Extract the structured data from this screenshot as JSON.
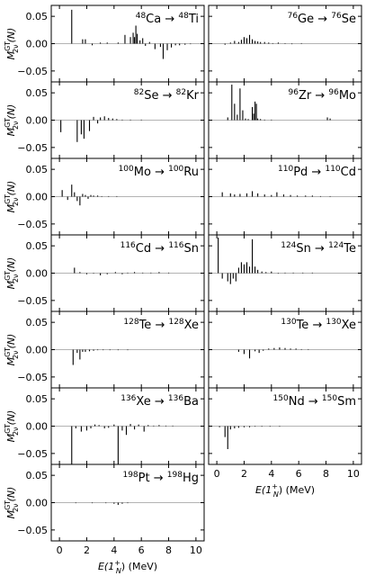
{
  "chart_data": {
    "type": "bar",
    "layout": "small-multiples",
    "xlabel_main": "E(1",
    "xlabel_sup": "+",
    "xlabel_sub": "N",
    "xlabel_unit": ") (MeV)",
    "ylabel_main": "M",
    "ylabel_sup": "GT",
    "ylabel_sub": "2ν",
    "ylabel_suffix": "(N)",
    "xlim": [
      -0.6,
      10.6
    ],
    "ylim": [
      -0.07,
      0.07
    ],
    "xticks": [
      0,
      2,
      4,
      6,
      8,
      10
    ],
    "xtick_labels": [
      "0",
      "2",
      "4",
      "6",
      "8",
      "10"
    ],
    "yticks": [
      -0.05,
      0.0,
      0.05
    ],
    "ytick_labels": [
      "−0.05",
      "0.00",
      "0.05"
    ],
    "arrow": "→",
    "panels": [
      {
        "id": "ca48",
        "from_mass": "48",
        "from_el": "Ca",
        "to_mass": "48",
        "to_el": "Ti",
        "bars": [
          [
            0.9,
            0.062
          ],
          [
            1.7,
            0.008
          ],
          [
            1.9,
            0.008
          ],
          [
            2.4,
            -0.003
          ],
          [
            3.0,
            0.002
          ],
          [
            3.5,
            0.002
          ],
          [
            4.3,
            0.002
          ],
          [
            4.8,
            0.016
          ],
          [
            5.2,
            0.012
          ],
          [
            5.4,
            0.02
          ],
          [
            5.5,
            0.012
          ],
          [
            5.6,
            0.033
          ],
          [
            5.7,
            0.018
          ],
          [
            5.9,
            0.006
          ],
          [
            6.1,
            0.01
          ],
          [
            6.3,
            -0.004
          ],
          [
            6.6,
            0.003
          ],
          [
            7.0,
            -0.01
          ],
          [
            7.4,
            -0.006
          ],
          [
            7.6,
            -0.028
          ],
          [
            7.9,
            -0.012
          ],
          [
            8.2,
            -0.007
          ],
          [
            8.5,
            -0.003
          ],
          [
            8.8,
            -0.003
          ],
          [
            9.2,
            -0.002
          ],
          [
            9.6,
            -0.001
          ]
        ]
      },
      {
        "id": "ge76",
        "from_mass": "76",
        "from_el": "Ge",
        "to_mass": "76",
        "to_el": "Se",
        "bars": [
          [
            0.6,
            -0.002
          ],
          [
            1.0,
            0.002
          ],
          [
            1.3,
            0.005
          ],
          [
            1.6,
            0.003
          ],
          [
            1.8,
            0.007
          ],
          [
            2.0,
            0.012
          ],
          [
            2.2,
            0.01
          ],
          [
            2.4,
            0.016
          ],
          [
            2.6,
            0.008
          ],
          [
            2.8,
            0.005
          ],
          [
            3.0,
            0.004
          ],
          [
            3.2,
            0.003
          ],
          [
            3.5,
            0.003
          ],
          [
            3.8,
            0.002
          ],
          [
            4.1,
            0.001
          ],
          [
            4.5,
            0.002
          ],
          [
            5.0,
            0.001
          ],
          [
            5.5,
            -0.001
          ],
          [
            6.2,
            0.001
          ]
        ]
      },
      {
        "id": "se82",
        "from_mass": "82",
        "from_el": "Se",
        "to_mass": "82",
        "to_el": "Kr",
        "bars": [
          [
            0.1,
            -0.022
          ],
          [
            1.3,
            -0.04
          ],
          [
            1.6,
            -0.026
          ],
          [
            1.8,
            -0.034
          ],
          [
            2.2,
            -0.02
          ],
          [
            2.5,
            0.006
          ],
          [
            2.8,
            -0.006
          ],
          [
            3.0,
            0.005
          ],
          [
            3.3,
            0.007
          ],
          [
            3.6,
            0.004
          ],
          [
            3.9,
            0.003
          ],
          [
            4.2,
            0.002
          ],
          [
            4.6,
            0.001
          ],
          [
            5.2,
            0.001
          ],
          [
            6.0,
            0.001
          ]
        ]
      },
      {
        "id": "zr96",
        "from_mass": "96",
        "from_el": "Zr",
        "to_mass": "96",
        "to_el": "Mo",
        "bars": [
          [
            0.8,
            0.005
          ],
          [
            1.1,
            0.065
          ],
          [
            1.3,
            0.03
          ],
          [
            1.5,
            0.01
          ],
          [
            1.7,
            0.058
          ],
          [
            1.9,
            0.018
          ],
          [
            2.1,
            0.003
          ],
          [
            2.3,
            0.002
          ],
          [
            2.6,
            0.024
          ],
          [
            2.7,
            0.012
          ],
          [
            2.8,
            0.034
          ],
          [
            2.9,
            0.03
          ],
          [
            3.0,
            0.003
          ],
          [
            3.2,
            0.002
          ],
          [
            3.5,
            0.001
          ],
          [
            4.0,
            0.001
          ],
          [
            8.1,
            0.005
          ],
          [
            8.3,
            0.003
          ]
        ]
      },
      {
        "id": "mo100",
        "from_mass": "100",
        "from_el": "Mo",
        "to_mass": "100",
        "to_el": "Ru",
        "bars": [
          [
            0.2,
            0.012
          ],
          [
            0.6,
            -0.006
          ],
          [
            0.9,
            0.022
          ],
          [
            1.1,
            0.008
          ],
          [
            1.3,
            -0.008
          ],
          [
            1.5,
            -0.016
          ],
          [
            1.7,
            0.005
          ],
          [
            1.9,
            0.003
          ],
          [
            2.1,
            -0.004
          ],
          [
            2.3,
            0.003
          ],
          [
            2.5,
            0.002
          ],
          [
            2.8,
            0.002
          ],
          [
            3.1,
            0.001
          ],
          [
            3.6,
            0.001
          ],
          [
            4.2,
            0.001
          ]
        ]
      },
      {
        "id": "pd110",
        "from_mass": "110",
        "from_el": "Pd",
        "to_mass": "110",
        "to_el": "Cd",
        "bars": [
          [
            0.4,
            0.008
          ],
          [
            1.0,
            0.006
          ],
          [
            1.3,
            0.004
          ],
          [
            1.7,
            0.005
          ],
          [
            2.2,
            0.006
          ],
          [
            2.6,
            0.01
          ],
          [
            3.0,
            0.006
          ],
          [
            3.5,
            0.004
          ],
          [
            4.0,
            0.003
          ],
          [
            4.4,
            0.008
          ],
          [
            4.9,
            0.004
          ],
          [
            5.4,
            0.003
          ],
          [
            5.9,
            0.002
          ],
          [
            6.5,
            0.002
          ],
          [
            7.0,
            0.002
          ],
          [
            7.6,
            0.001
          ],
          [
            8.3,
            0.001
          ]
        ]
      },
      {
        "id": "cd116",
        "from_mass": "116",
        "from_el": "Cd",
        "to_mass": "116",
        "to_el": "Sn",
        "bars": [
          [
            1.1,
            0.01
          ],
          [
            1.5,
            0.002
          ],
          [
            2.0,
            -0.002
          ],
          [
            2.5,
            -0.001
          ],
          [
            3.0,
            -0.004
          ],
          [
            3.5,
            -0.002
          ],
          [
            4.1,
            0.002
          ],
          [
            4.6,
            -0.002
          ],
          [
            5.0,
            0.001
          ],
          [
            5.5,
            0.002
          ],
          [
            6.1,
            0.001
          ],
          [
            6.7,
            0.001
          ],
          [
            7.3,
            0.002
          ],
          [
            8.0,
            0.001
          ]
        ]
      },
      {
        "id": "sn124",
        "from_mass": "124",
        "from_el": "Sn",
        "to_mass": "124",
        "to_el": "Te",
        "bars": [
          [
            0.1,
            0.065
          ],
          [
            0.4,
            -0.01
          ],
          [
            0.8,
            -0.015
          ],
          [
            1.0,
            -0.02
          ],
          [
            1.2,
            -0.01
          ],
          [
            1.4,
            -0.015
          ],
          [
            1.6,
            0.01
          ],
          [
            1.8,
            0.02
          ],
          [
            2.0,
            0.016
          ],
          [
            2.2,
            0.02
          ],
          [
            2.4,
            0.012
          ],
          [
            2.6,
            0.062
          ],
          [
            2.8,
            0.012
          ],
          [
            3.0,
            0.006
          ],
          [
            3.3,
            0.003
          ],
          [
            3.6,
            0.002
          ],
          [
            4.0,
            0.003
          ],
          [
            4.5,
            -0.001
          ],
          [
            5.0,
            0.001
          ],
          [
            5.6,
            0.001
          ],
          [
            6.3,
            0.001
          ],
          [
            7.0,
            0.001
          ]
        ]
      },
      {
        "id": "te128",
        "from_mass": "128",
        "from_el": "Te",
        "to_mass": "128",
        "to_el": "Xe",
        "bars": [
          [
            1.0,
            -0.028
          ],
          [
            1.3,
            -0.006
          ],
          [
            1.5,
            -0.018
          ],
          [
            1.7,
            -0.004
          ],
          [
            1.9,
            -0.004
          ],
          [
            2.2,
            -0.003
          ],
          [
            2.5,
            -0.002
          ],
          [
            2.8,
            -0.001
          ],
          [
            3.2,
            -0.001
          ],
          [
            3.7,
            -0.001
          ],
          [
            4.3,
            -0.001
          ],
          [
            5.0,
            -0.001
          ]
        ]
      },
      {
        "id": "te130",
        "from_mass": "130",
        "from_el": "Te",
        "to_mass": "130",
        "to_el": "Xe",
        "bars": [
          [
            1.6,
            -0.004
          ],
          [
            2.0,
            -0.008
          ],
          [
            2.4,
            -0.016
          ],
          [
            2.8,
            -0.003
          ],
          [
            3.1,
            -0.006
          ],
          [
            3.4,
            -0.002
          ],
          [
            3.8,
            0.002
          ],
          [
            4.2,
            0.003
          ],
          [
            4.6,
            0.004
          ],
          [
            5.0,
            0.003
          ],
          [
            5.4,
            0.002
          ],
          [
            5.8,
            0.002
          ],
          [
            6.2,
            0.001
          ],
          [
            6.7,
            0.001
          ]
        ]
      },
      {
        "id": "xe136",
        "from_mass": "136",
        "from_el": "Xe",
        "to_mass": "136",
        "to_el": "Ba",
        "bars": [
          [
            0.9,
            -0.07
          ],
          [
            1.2,
            -0.004
          ],
          [
            1.6,
            -0.01
          ],
          [
            2.0,
            -0.008
          ],
          [
            2.3,
            -0.004
          ],
          [
            2.6,
            0.003
          ],
          [
            2.9,
            0.002
          ],
          [
            3.3,
            -0.004
          ],
          [
            3.6,
            -0.003
          ],
          [
            4.0,
            0.003
          ],
          [
            4.3,
            -0.07
          ],
          [
            4.6,
            -0.008
          ],
          [
            4.9,
            -0.016
          ],
          [
            5.2,
            0.004
          ],
          [
            5.5,
            -0.006
          ],
          [
            5.8,
            0.003
          ],
          [
            6.2,
            -0.01
          ],
          [
            6.5,
            0.002
          ],
          [
            6.9,
            0.001
          ],
          [
            7.3,
            0.002
          ],
          [
            7.8,
            0.001
          ],
          [
            8.3,
            0.001
          ]
        ]
      },
      {
        "id": "nd150",
        "from_mass": "150",
        "from_el": "Nd",
        "to_mass": "150",
        "to_el": "Sm",
        "bars": [
          [
            0.2,
            -0.002
          ],
          [
            0.6,
            -0.02
          ],
          [
            0.8,
            -0.042
          ],
          [
            1.0,
            -0.006
          ],
          [
            1.3,
            -0.004
          ],
          [
            1.6,
            -0.003
          ],
          [
            2.0,
            -0.002
          ],
          [
            2.4,
            -0.002
          ],
          [
            2.8,
            -0.001
          ],
          [
            3.3,
            -0.001
          ],
          [
            3.9,
            -0.001
          ],
          [
            4.6,
            -0.001
          ]
        ]
      },
      {
        "id": "pt198",
        "from_mass": "198",
        "from_el": "Pt",
        "to_mass": "198",
        "to_el": "Hg",
        "bars": [
          [
            1.2,
            -0.001
          ],
          [
            2.4,
            -0.001
          ],
          [
            3.4,
            -0.001
          ],
          [
            4.0,
            -0.002
          ],
          [
            4.3,
            -0.004
          ],
          [
            4.6,
            -0.002
          ],
          [
            5.0,
            -0.001
          ]
        ]
      }
    ]
  }
}
